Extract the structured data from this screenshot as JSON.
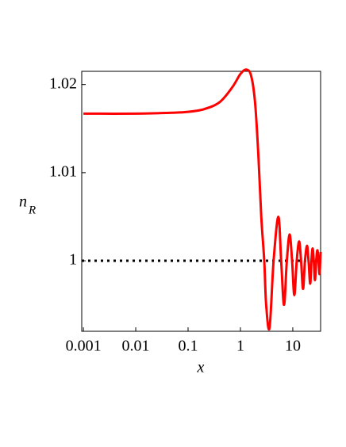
{
  "chart_data": {
    "type": "line",
    "xlabel": "x",
    "ylabel": "n",
    "ylabel_subscript": "R",
    "xscale": "log",
    "xlim": [
      0.00093,
      34
    ],
    "ylim": [
      0.992,
      1.0215
    ],
    "xticks": [
      0.001,
      0.01,
      0.1,
      1,
      10
    ],
    "yticks": [
      1,
      1.01,
      1.02
    ],
    "color": "#ff0000",
    "x": [
      0.001,
      0.01,
      0.05,
      0.1,
      0.2,
      0.4,
      0.7,
      1.0,
      1.3,
      1.6,
      1.9,
      2.2,
      2.5,
      2.85,
      3.1,
      3.6,
      4.3,
      5.3,
      6.0,
      6.8,
      7.7,
      8.7,
      9.7,
      10.7,
      11.9,
      13.2,
      14.4,
      15.7,
      17.1,
      18.7,
      20,
      21.5,
      22.7,
      23.9,
      25.2,
      26.5,
      28,
      29.5,
      31,
      32.5,
      34
    ],
    "values": [
      1.0167,
      1.0167,
      1.0168,
      1.0169,
      1.0172,
      1.018,
      1.0197,
      1.0212,
      1.0217,
      1.021,
      1.018,
      1.012,
      1.005,
      1.0,
      0.995,
      0.9924,
      1.0,
      1.005,
      1.0,
      0.995,
      1.0,
      1.003,
      1.0,
      0.9961,
      1.0,
      1.0022,
      1.0,
      0.9968,
      1.0,
      1.0017,
      1.0,
      0.9974,
      1.0,
      1.0014,
      1.0,
      0.9978,
      1.0,
      1.0012,
      1.0,
      0.9985,
      1.001
    ],
    "reference_line": {
      "y": 1,
      "color": "#000000",
      "style": "dotted"
    }
  }
}
